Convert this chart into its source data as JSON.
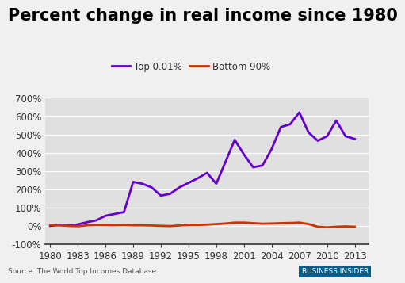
{
  "title": "Percent change in real income since 1980",
  "source": "Source: The World Top Incomes Database",
  "watermark": "BUSINESS INSIDER",
  "legend": [
    "Top 0.01%",
    "Bottom 90%"
  ],
  "background_color": "#f0f0f0",
  "plot_bg_color": "#e0e0e0",
  "ylim": [
    -100,
    700
  ],
  "yticks": [
    -100,
    0,
    100,
    200,
    300,
    400,
    500,
    600,
    700
  ],
  "xticks": [
    1980,
    1983,
    1986,
    1989,
    1992,
    1995,
    1998,
    2001,
    2004,
    2007,
    2010,
    2013
  ],
  "top001_x": [
    1980,
    1981,
    1982,
    1983,
    1984,
    1985,
    1986,
    1987,
    1988,
    1989,
    1990,
    1991,
    1992,
    1993,
    1994,
    1995,
    1996,
    1997,
    1998,
    1999,
    2000,
    2001,
    2002,
    2003,
    2004,
    2005,
    2006,
    2007,
    2008,
    2009,
    2010,
    2011,
    2012,
    2013
  ],
  "top001_y": [
    0,
    5,
    2,
    8,
    20,
    30,
    55,
    65,
    75,
    240,
    230,
    210,
    165,
    175,
    210,
    235,
    260,
    290,
    230,
    350,
    470,
    390,
    320,
    330,
    420,
    540,
    555,
    620,
    510,
    465,
    490,
    575,
    490,
    475
  ],
  "bot90_x": [
    1980,
    1981,
    1982,
    1983,
    1984,
    1985,
    1986,
    1987,
    1988,
    1989,
    1990,
    1991,
    1992,
    1993,
    1994,
    1995,
    1996,
    1997,
    1998,
    1999,
    2000,
    2001,
    2002,
    2003,
    2004,
    2005,
    2006,
    2007,
    2008,
    2009,
    2010,
    2011,
    2012,
    2013
  ],
  "bot90_y": [
    5,
    3,
    0,
    -2,
    3,
    5,
    5,
    4,
    5,
    3,
    3,
    2,
    0,
    -1,
    2,
    5,
    5,
    7,
    10,
    13,
    18,
    18,
    15,
    12,
    13,
    15,
    16,
    18,
    10,
    -5,
    -8,
    -5,
    -3,
    -5
  ],
  "top001_color": "#6600cc",
  "bot90_color": "#cc3300",
  "line_width": 2.0,
  "title_fontsize": 15,
  "tick_fontsize": 8.5,
  "legend_fontsize": 8.5,
  "grid_color": "#ffffff",
  "axis_color": "#333333"
}
